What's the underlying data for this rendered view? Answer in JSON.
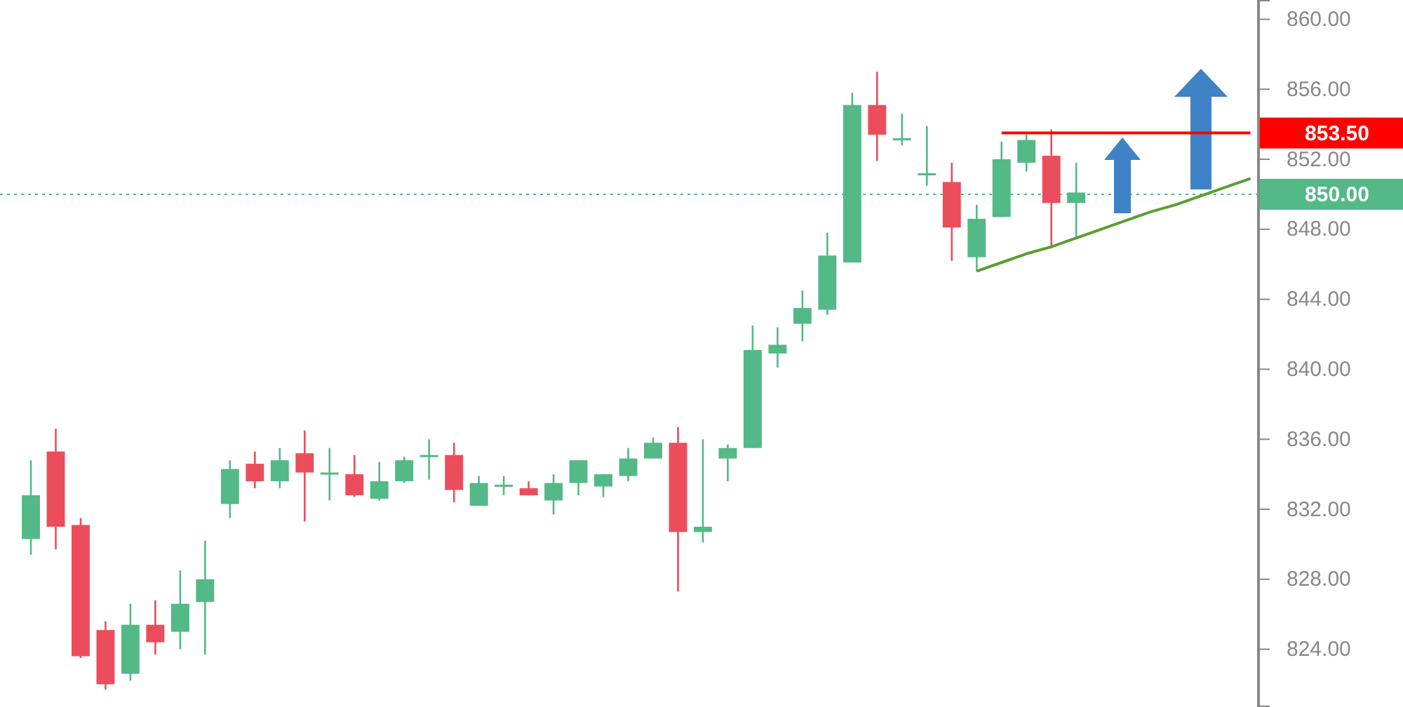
{
  "chart_data": {
    "type": "candlestick",
    "categories": [
      null,
      null,
      null,
      null,
      null,
      null,
      null,
      null,
      null,
      null,
      null,
      null,
      null,
      null,
      null,
      null,
      null,
      null,
      null,
      null,
      null,
      null,
      null,
      null,
      null,
      null,
      null,
      null,
      null,
      null,
      null,
      null,
      null,
      null,
      null,
      null,
      null,
      null,
      null,
      null,
      null,
      null,
      null,
      null,
      null,
      null,
      null,
      null,
      null,
      null
    ],
    "ohlc": [
      [
        830.3,
        834.8,
        829.4,
        832.8
      ],
      [
        835.3,
        836.6,
        829.7,
        831.0
      ],
      [
        831.1,
        831.5,
        823.5,
        823.6
      ],
      [
        825.1,
        825.6,
        821.7,
        822.0
      ],
      [
        822.6,
        826.6,
        822.2,
        825.4
      ],
      [
        825.4,
        826.8,
        823.7,
        824.4
      ],
      [
        825.0,
        828.5,
        824.0,
        826.6
      ],
      [
        826.7,
        830.2,
        823.7,
        828.0
      ],
      [
        832.3,
        834.8,
        831.5,
        834.3
      ],
      [
        834.6,
        835.3,
        833.2,
        833.6
      ],
      [
        833.6,
        835.5,
        833.2,
        834.8
      ],
      [
        835.2,
        836.5,
        831.3,
        834.1
      ],
      [
        834.0,
        835.5,
        832.5,
        834.1
      ],
      [
        834.0,
        835.1,
        832.7,
        832.8
      ],
      [
        832.6,
        834.7,
        832.5,
        833.6
      ],
      [
        833.6,
        835.0,
        833.5,
        834.8
      ],
      [
        835.0,
        836.0,
        833.7,
        835.1
      ],
      [
        835.1,
        835.8,
        832.4,
        833.1
      ],
      [
        832.2,
        833.9,
        832.2,
        833.5
      ],
      [
        833.3,
        833.9,
        832.8,
        833.4
      ],
      [
        833.2,
        833.6,
        832.8,
        832.8
      ],
      [
        832.5,
        834.0,
        831.7,
        833.5
      ],
      [
        833.5,
        834.8,
        832.8,
        834.8
      ],
      [
        833.3,
        834.0,
        832.7,
        834.0
      ],
      [
        833.9,
        835.5,
        833.6,
        834.9
      ],
      [
        834.9,
        836.1,
        834.9,
        835.8
      ],
      [
        835.8,
        836.7,
        827.3,
        830.7
      ],
      [
        830.7,
        836.0,
        830.1,
        831.0
      ],
      [
        834.9,
        835.7,
        833.6,
        835.5
      ],
      [
        835.5,
        842.5,
        835.5,
        841.1
      ],
      [
        840.9,
        842.4,
        840.1,
        841.4
      ],
      [
        842.6,
        844.5,
        841.6,
        843.5
      ],
      [
        843.4,
        847.8,
        843.1,
        846.5
      ],
      [
        846.1,
        855.8,
        846.1,
        855.1
      ],
      [
        855.1,
        857.0,
        851.9,
        853.4
      ],
      [
        853.1,
        854.6,
        852.8,
        853.2
      ],
      [
        851.1,
        853.9,
        850.5,
        851.2
      ],
      [
        850.7,
        851.8,
        846.2,
        848.1
      ],
      [
        846.4,
        849.4,
        845.6,
        848.6
      ],
      [
        848.7,
        853.0,
        848.7,
        852.0
      ],
      [
        851.8,
        853.5,
        851.3,
        853.1
      ],
      [
        852.2,
        853.7,
        846.9,
        849.5
      ],
      [
        849.5,
        851.8,
        847.5,
        850.1
      ],
      null,
      null,
      null,
      null,
      null,
      null,
      null
    ],
    "series": [
      {
        "type": "line",
        "color": "#5a9e32",
        "values": [
          null,
          null,
          null,
          null,
          null,
          null,
          null,
          null,
          null,
          null,
          null,
          null,
          null,
          null,
          null,
          null,
          null,
          null,
          null,
          null,
          null,
          null,
          null,
          null,
          null,
          null,
          null,
          null,
          null,
          null,
          null,
          null,
          null,
          null,
          null,
          null,
          null,
          null,
          845.6,
          846.1,
          846.6,
          847.0,
          847.5,
          848.0,
          848.5,
          849.0,
          849.4,
          849.9,
          850.4,
          850.9
        ]
      },
      {
        "type": "line",
        "color": "#ff0000",
        "values": [
          null,
          null,
          null,
          null,
          null,
          null,
          null,
          null,
          null,
          null,
          null,
          null,
          null,
          null,
          null,
          null,
          null,
          null,
          null,
          null,
          null,
          null,
          null,
          null,
          null,
          null,
          null,
          null,
          null,
          null,
          null,
          null,
          null,
          null,
          null,
          null,
          null,
          null,
          null,
          853.5,
          853.5,
          853.5,
          853.5,
          853.5,
          853.5,
          853.5,
          853.5,
          853.5,
          853.5,
          853.5
        ]
      }
    ],
    "ref_lines": [
      {
        "axis": "y",
        "value": 850,
        "label": "850.00",
        "color": "#53b987",
        "line_style": "dotted"
      }
    ],
    "annotations": [
      "853.50"
    ],
    "ylim": [
      820.7,
      861.1
    ],
    "yticks": [
      {
        "value": 824,
        "label": "824.00"
      },
      {
        "value": 828,
        "label": "828.00"
      },
      {
        "value": 832,
        "label": "832.00"
      },
      {
        "value": 836,
        "label": "836.00"
      },
      {
        "value": 840,
        "label": "840.00"
      },
      {
        "value": 844,
        "label": "844.00"
      },
      {
        "value": 848,
        "label": "848.00"
      },
      {
        "value": 852,
        "label": "852.00"
      },
      {
        "value": 856,
        "label": "856.00"
      },
      {
        "value": 860,
        "label": "860.00"
      }
    ],
    "tick_labels": "y",
    "grid": false
  }
}
